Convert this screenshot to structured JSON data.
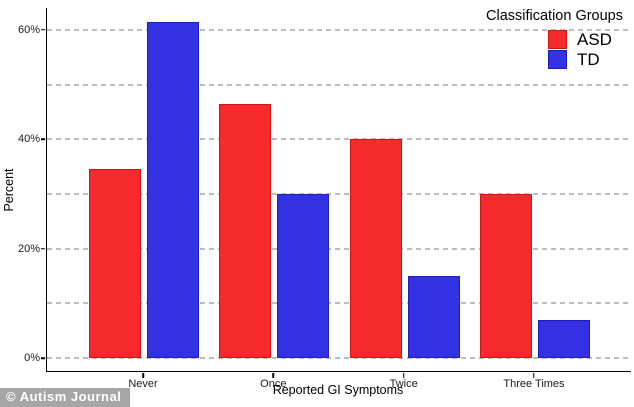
{
  "watermark": "© Autism Journal",
  "colors": {
    "asd_fill": "#f62a2c",
    "asd_border": "#cf1516",
    "td_fill": "#3331e4",
    "td_border": "#1f1dbb",
    "gridline": "#bcbcbc",
    "axis": "#000000",
    "watermark_bg": "#a6a6a6",
    "watermark_text": "#ffffff"
  },
  "legend": {
    "title": "Classification Groups",
    "items": [
      {
        "label": "ASD",
        "color": "#f62a2c"
      },
      {
        "label": "TD",
        "color": "#3331e4"
      }
    ]
  },
  "chart_data": {
    "type": "bar",
    "title": "",
    "categories": [
      "Never",
      "Once",
      "Twice",
      "Three Times"
    ],
    "series": [
      {
        "name": "ASD",
        "color": "#f62a2c",
        "values": [
          34.5,
          46.5,
          40,
          30
        ]
      },
      {
        "name": "TD",
        "color": "#3331e4",
        "values": [
          61.5,
          30,
          15,
          7
        ]
      }
    ],
    "xlabel": "Reported GI Symptoms",
    "ylabel": "Percent",
    "ylim": [
      0,
      65
    ],
    "yticks": [
      0,
      10,
      20,
      30,
      40,
      50,
      60
    ],
    "ytick_labeled": [
      0,
      20,
      40,
      60
    ],
    "ytick_label_format": "{v}%",
    "grid": "horizontal-dashed",
    "legend_title": "Classification Groups",
    "legend_position": "top-right"
  }
}
